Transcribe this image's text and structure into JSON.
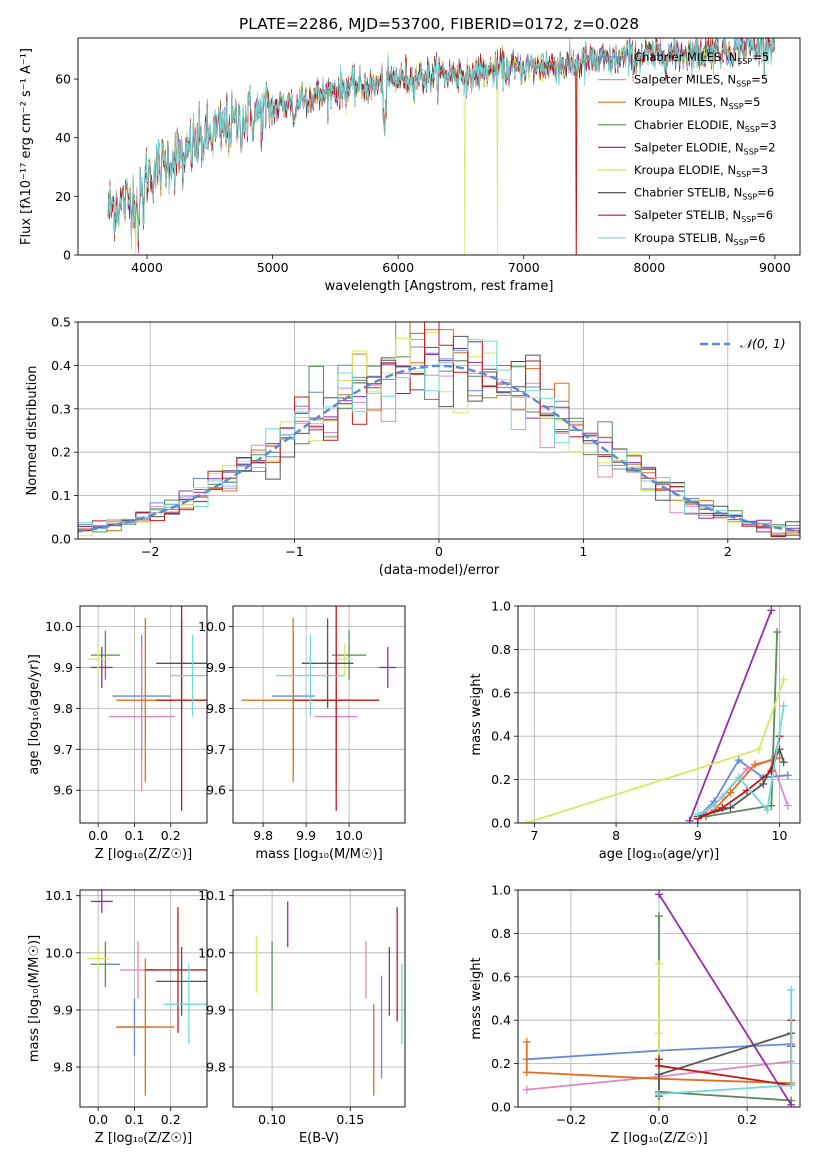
{
  "figure_title": "PLATE=2286, MJD=53700, FIBERID=0172, z=0.028",
  "series": [
    {
      "name": "Chabrier MILES, N_SSP=5",
      "color": "#6688dd"
    },
    {
      "name": "Salpeter MILES, N_SSP=5",
      "color": "#e088c0"
    },
    {
      "name": "Kroupa MILES, N_SSP=5",
      "color": "#e07020"
    },
    {
      "name": "Chabrier ELODIE, N_SSP=3",
      "color": "#5a8a5a"
    },
    {
      "name": "Salpeter ELODIE, N_SSP=2",
      "color": "#9030b0"
    },
    {
      "name": "Kroupa ELODIE, N_SSP=3",
      "color": "#d8e860"
    },
    {
      "name": "Chabrier STELIB, N_SSP=6",
      "color": "#555555"
    },
    {
      "name": "Salpeter STELIB, N_SSP=6",
      "color": "#c01818"
    },
    {
      "name": "Kroupa STELIB, N_SSP=6",
      "color": "#70d8d8"
    }
  ],
  "chart_data": [
    {
      "id": "spectrum",
      "type": "line",
      "xlabel": "wavelength [Angstrom, rest frame]",
      "ylabel": "Flux [fλ10⁻¹⁷ erg cm⁻² s⁻¹ A⁻¹]",
      "xlim": [
        3450,
        9200
      ],
      "ylim": [
        0,
        74
      ],
      "xticks": [
        4000,
        5000,
        6000,
        7000,
        8000,
        9000
      ],
      "yticks": [
        0,
        20,
        40,
        60
      ],
      "legend": "top-right",
      "continuum": [
        [
          3700,
          16
        ],
        [
          3900,
          19
        ],
        [
          4000,
          27
        ],
        [
          4200,
          33
        ],
        [
          4400,
          38
        ],
        [
          4600,
          43
        ],
        [
          4800,
          47
        ],
        [
          5000,
          50
        ],
        [
          5200,
          53
        ],
        [
          5400,
          55
        ],
        [
          5600,
          57
        ],
        [
          5800,
          58
        ],
        [
          6000,
          60
        ],
        [
          6200,
          61
        ],
        [
          6400,
          61.5
        ],
        [
          6600,
          62
        ],
        [
          6800,
          63
        ],
        [
          7000,
          64
        ],
        [
          7200,
          64.5
        ],
        [
          7400,
          65
        ],
        [
          7600,
          66
        ],
        [
          7800,
          67
        ],
        [
          8000,
          68
        ],
        [
          8200,
          68.5
        ],
        [
          8400,
          69
        ],
        [
          8600,
          70
        ],
        [
          8800,
          71
        ],
        [
          9000,
          72
        ]
      ],
      "features": [
        {
          "x": 3934,
          "depth": 10
        },
        {
          "x": 3969,
          "depth": 8
        },
        {
          "x": 4300,
          "depth": 9
        },
        {
          "x": 5175,
          "depth": 8
        },
        {
          "x": 5893,
          "depth": 16
        },
        {
          "x": 6563,
          "depth": 5
        }
      ],
      "dropouts": [
        {
          "series": 5,
          "x": 3910,
          "to": 0
        },
        {
          "series": 5,
          "x": 6790,
          "to": 0
        },
        {
          "series": 7,
          "x": 7420,
          "to": 0
        },
        {
          "series": 2,
          "x": 7415,
          "to": 0
        },
        {
          "series": 5,
          "x": 6530,
          "to": 0
        }
      ]
    },
    {
      "id": "residuals",
      "type": "histogram",
      "xlabel": "(data-model)/error",
      "ylabel": "Normed distribution",
      "xlim": [
        -2.5,
        2.5
      ],
      "ylim": [
        0,
        0.5
      ],
      "xticks": [
        -2,
        -1,
        0,
        1,
        2
      ],
      "yticks": [
        0.0,
        0.1,
        0.2,
        0.3,
        0.4,
        0.5
      ],
      "bin_width": 0.1,
      "reference": {
        "label": "𝒩(0, 1)",
        "mean": 0,
        "sigma": 1,
        "color": "#5a8ad8"
      },
      "legend": "top-right"
    },
    {
      "id": "age-vs-Z",
      "type": "errorbar",
      "xlabel": "Z [log₁₀(Z/Z☉)]",
      "ylabel": "age  [log₁₀(age/yr)]",
      "xlim": [
        -0.05,
        0.3
      ],
      "ylim": [
        9.52,
        10.05
      ],
      "xticks": [
        0.0,
        0.1,
        0.2
      ],
      "yticks": [
        9.6,
        9.7,
        9.8,
        9.9,
        10.0
      ],
      "points": [
        {
          "s": 0,
          "x": 0.12,
          "y": 9.83,
          "xerr": 0.08,
          "yerr": 0.15
        },
        {
          "s": 1,
          "x": 0.12,
          "y": 9.78,
          "xerr": 0.09,
          "yerr": 0.18
        },
        {
          "s": 2,
          "x": 0.13,
          "y": 9.82,
          "xerr": 0.08,
          "yerr": 0.2
        },
        {
          "s": 3,
          "x": 0.02,
          "y": 9.93,
          "xerr": 0.04,
          "yerr": 0.06
        },
        {
          "s": 4,
          "x": 0.01,
          "y": 9.9,
          "xerr": 0.03,
          "yerr": 0.05
        },
        {
          "s": 5,
          "x": 0.0,
          "y": 9.92,
          "xerr": 0.03,
          "yerr": 0.04
        },
        {
          "s": 6,
          "x": 0.23,
          "y": 9.91,
          "xerr": 0.07,
          "yerr": 0.11
        },
        {
          "s": 7,
          "x": 0.23,
          "y": 9.82,
          "xerr": 0.07,
          "yerr": 0.27
        },
        {
          "s": 8,
          "x": 0.26,
          "y": 9.88,
          "xerr": 0.06,
          "yerr": 0.1
        }
      ]
    },
    {
      "id": "age-vs-mass",
      "type": "errorbar",
      "xlabel": "mass [log₁₀(M/M☉)]",
      "ylabel": "",
      "xlim": [
        9.73,
        10.13
      ],
      "ylim": [
        9.52,
        10.05
      ],
      "xticks": [
        9.8,
        9.9,
        10.0
      ],
      "yticks": [
        9.6,
        9.7,
        9.8,
        9.9,
        10.0
      ],
      "points": [
        {
          "s": 0,
          "x": 9.87,
          "y": 9.83,
          "xerr": 0.05,
          "yerr": 0.15
        },
        {
          "s": 1,
          "x": 9.97,
          "y": 9.78,
          "xerr": 0.05,
          "yerr": 0.18
        },
        {
          "s": 2,
          "x": 9.87,
          "y": 9.82,
          "xerr": 0.12,
          "yerr": 0.2
        },
        {
          "s": 3,
          "x": 10.0,
          "y": 9.93,
          "xerr": 0.04,
          "yerr": 0.06
        },
        {
          "s": 4,
          "x": 10.09,
          "y": 9.9,
          "xerr": 0.02,
          "yerr": 0.05
        },
        {
          "s": 5,
          "x": 9.99,
          "y": 9.92,
          "xerr": 0.02,
          "yerr": 0.04
        },
        {
          "s": 6,
          "x": 9.95,
          "y": 9.91,
          "xerr": 0.06,
          "yerr": 0.11
        },
        {
          "s": 7,
          "x": 9.97,
          "y": 9.82,
          "xerr": 0.1,
          "yerr": 0.27
        },
        {
          "s": 8,
          "x": 9.91,
          "y": 9.88,
          "xerr": 0.08,
          "yerr": 0.1
        }
      ]
    },
    {
      "id": "weight-vs-age",
      "type": "line",
      "xlabel": "age  [log₁₀(age/yr)]",
      "ylabel": "mass weight",
      "xlim": [
        6.8,
        10.25
      ],
      "ylim": [
        0,
        1.0
      ],
      "xticks": [
        7,
        8,
        9,
        10
      ],
      "yticks": [
        0.0,
        0.2,
        0.4,
        0.6,
        0.8,
        1.0
      ],
      "lines": [
        {
          "s": 0,
          "x": [
            9.0,
            9.2,
            9.5,
            9.8,
            10.1
          ],
          "y": [
            0.03,
            0.1,
            0.29,
            0.21,
            0.22
          ]
        },
        {
          "s": 1,
          "x": [
            9.0,
            9.3,
            9.6,
            9.9,
            10.1
          ],
          "y": [
            0.02,
            0.12,
            0.25,
            0.29,
            0.08
          ]
        },
        {
          "s": 2,
          "x": [
            9.0,
            9.2,
            9.4,
            9.7,
            10.0
          ],
          "y": [
            0.02,
            0.06,
            0.14,
            0.27,
            0.3
          ]
        },
        {
          "s": 3,
          "x": [
            9.1,
            9.9,
            9.97
          ],
          "y": [
            0.03,
            0.08,
            0.88
          ]
        },
        {
          "s": 4,
          "x": [
            8.9,
            9.9
          ],
          "y": [
            0.01,
            0.98
          ]
        },
        {
          "s": 5,
          "x": [
            6.9,
            9.75,
            10.05
          ],
          "y": [
            0.0,
            0.34,
            0.66
          ]
        },
        {
          "s": 6,
          "x": [
            9.0,
            9.4,
            9.8,
            10.0,
            10.05
          ],
          "y": [
            0.03,
            0.07,
            0.18,
            0.34,
            0.28
          ]
        },
        {
          "s": 7,
          "x": [
            9.0,
            9.3,
            9.6,
            9.9,
            10.0
          ],
          "y": [
            0.02,
            0.07,
            0.15,
            0.24,
            0.4
          ]
        },
        {
          "s": 8,
          "x": [
            9.0,
            9.2,
            9.5,
            9.85,
            10.05
          ],
          "y": [
            0.04,
            0.08,
            0.21,
            0.06,
            0.54
          ]
        }
      ]
    },
    {
      "id": "mass-vs-Z",
      "type": "errorbar",
      "xlabel": "Z [log₁₀(Z/Z☉)]",
      "ylabel": "mass [log₁₀(M/M☉)]",
      "xlim": [
        -0.05,
        0.3
      ],
      "ylim": [
        9.73,
        10.11
      ],
      "xticks": [
        0.0,
        0.1,
        0.2
      ],
      "yticks": [
        9.8,
        9.9,
        10.0,
        10.1
      ],
      "points": [
        {
          "s": 0,
          "x": 0.1,
          "y": 9.87,
          "xerr": 0.05,
          "yerr": 0.05
        },
        {
          "s": 1,
          "x": 0.11,
          "y": 9.97,
          "xerr": 0.05,
          "yerr": 0.05
        },
        {
          "s": 2,
          "x": 0.13,
          "y": 9.87,
          "xerr": 0.08,
          "yerr": 0.12
        },
        {
          "s": 3,
          "x": 0.02,
          "y": 9.98,
          "xerr": 0.04,
          "yerr": 0.04
        },
        {
          "s": 4,
          "x": 0.01,
          "y": 10.09,
          "xerr": 0.03,
          "yerr": 0.02
        },
        {
          "s": 5,
          "x": 0.0,
          "y": 9.99,
          "xerr": 0.03,
          "yerr": 0.02
        },
        {
          "s": 6,
          "x": 0.23,
          "y": 9.95,
          "xerr": 0.07,
          "yerr": 0.06
        },
        {
          "s": 7,
          "x": 0.22,
          "y": 9.97,
          "xerr": 0.09,
          "yerr": 0.11
        },
        {
          "s": 8,
          "x": 0.25,
          "y": 9.91,
          "xerr": 0.07,
          "yerr": 0.07
        }
      ]
    },
    {
      "id": "mass-vs-ebv",
      "type": "errorbar",
      "xlabel": "E(B-V)",
      "ylabel": "",
      "xlim": [
        0.075,
        0.185
      ],
      "ylim": [
        9.73,
        10.11
      ],
      "xticks": [
        0.1,
        0.15
      ],
      "yticks": [
        9.8,
        9.9,
        10.0,
        10.1
      ],
      "points": [
        {
          "s": 0,
          "x": 0.17,
          "y": 9.87,
          "xerr": 0.0,
          "yerr": 0.09
        },
        {
          "s": 1,
          "x": 0.16,
          "y": 9.97,
          "xerr": 0.0,
          "yerr": 0.05
        },
        {
          "s": 2,
          "x": 0.165,
          "y": 9.83,
          "xerr": 0.0,
          "yerr": 0.08
        },
        {
          "s": 3,
          "x": 0.1,
          "y": 9.96,
          "xerr": 0.0,
          "yerr": 0.06
        },
        {
          "s": 4,
          "x": 0.11,
          "y": 10.05,
          "xerr": 0.0,
          "yerr": 0.04
        },
        {
          "s": 5,
          "x": 0.09,
          "y": 9.98,
          "xerr": 0.0,
          "yerr": 0.05
        },
        {
          "s": 6,
          "x": 0.175,
          "y": 9.95,
          "xerr": 0.0,
          "yerr": 0.06
        },
        {
          "s": 7,
          "x": 0.18,
          "y": 9.98,
          "xerr": 0.0,
          "yerr": 0.1
        },
        {
          "s": 8,
          "x": 0.183,
          "y": 9.91,
          "xerr": 0.0,
          "yerr": 0.07
        }
      ]
    },
    {
      "id": "weight-vs-Z",
      "type": "line",
      "xlabel": "Z [log₁₀(Z/Z☉)]",
      "ylabel": "mass weight",
      "xlim": [
        -0.32,
        0.32
      ],
      "ylim": [
        0,
        1.0
      ],
      "xticks": [
        -0.2,
        0.0,
        0.2
      ],
      "yticks": [
        0.0,
        0.2,
        0.4,
        0.6,
        0.8,
        1.0
      ],
      "lines": [
        {
          "s": 0,
          "x": [
            -0.3,
            0.0,
            0.3
          ],
          "y": [
            0.22,
            0.26,
            0.29
          ]
        },
        {
          "s": 1,
          "x": [
            -0.3,
            0.0,
            0.3
          ],
          "y": [
            0.08,
            0.14,
            0.21
          ]
        },
        {
          "s": 2,
          "x": [
            -0.3,
            -0.3,
            0.0,
            0.3
          ],
          "y": [
            0.3,
            0.16,
            0.13,
            0.11
          ]
        },
        {
          "s": 3,
          "x": [
            0.0,
            0.0,
            0.3
          ],
          "y": [
            0.88,
            0.07,
            0.03
          ]
        },
        {
          "s": 4,
          "x": [
            0.0,
            0.3
          ],
          "y": [
            0.98,
            0.01
          ]
        },
        {
          "s": 5,
          "x": [
            0.0,
            0.0,
            0.0
          ],
          "y": [
            0.66,
            0.34,
            0.0
          ]
        },
        {
          "s": 6,
          "x": [
            0.0,
            0.0,
            0.3,
            0.3
          ],
          "y": [
            0.05,
            0.15,
            0.34,
            0.28
          ]
        },
        {
          "s": 7,
          "x": [
            0.0,
            0.0,
            0.3,
            0.3
          ],
          "y": [
            0.22,
            0.19,
            0.1,
            0.4
          ]
        },
        {
          "s": 8,
          "x": [
            0.0,
            0.3,
            0.3
          ],
          "y": [
            0.06,
            0.1,
            0.54
          ]
        }
      ]
    }
  ]
}
